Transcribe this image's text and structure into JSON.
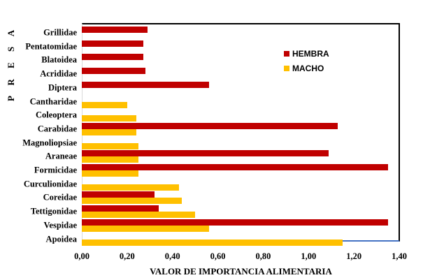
{
  "chart_data": {
    "type": "bar",
    "orientation": "horizontal",
    "title": "",
    "xlabel": "VALOR DE IMPORTANCIA ALIMENTARIA",
    "ylabel": "P R E S A",
    "xlim": [
      0,
      1.4
    ],
    "x_ticks": [
      "0,00",
      "0,20",
      "0,40",
      "0,60",
      "0,80",
      "1,00",
      "1,20",
      "1,40"
    ],
    "legend_position": "upper right (inside)",
    "grid": false,
    "categories": [
      "Grillidae",
      "Pentatomidae",
      "Blatoidea",
      "Acrididae",
      "Diptera",
      "Cantharidae",
      "Coleoptera",
      "Carabidae",
      "Magnoliopsiae",
      "Araneae",
      "Formicidae",
      "Curculionidae",
      "Coreidae",
      "Tettigonidae",
      "Vespidae",
      "Apoidea"
    ],
    "series": [
      {
        "name": "HEMBRA",
        "color": "#c00000",
        "values": [
          0.29,
          0.27,
          0.27,
          0.28,
          0.56,
          0,
          0,
          1.13,
          0,
          1.09,
          1.35,
          0,
          0.32,
          0.34,
          1.35,
          0
        ]
      },
      {
        "name": "MACHO",
        "color": "#ffc000",
        "values": [
          0,
          0,
          0,
          0,
          0,
          0.2,
          0.24,
          0.24,
          0.25,
          0.25,
          0.25,
          0.43,
          0.44,
          0.5,
          0.56,
          1.15
        ]
      }
    ]
  }
}
